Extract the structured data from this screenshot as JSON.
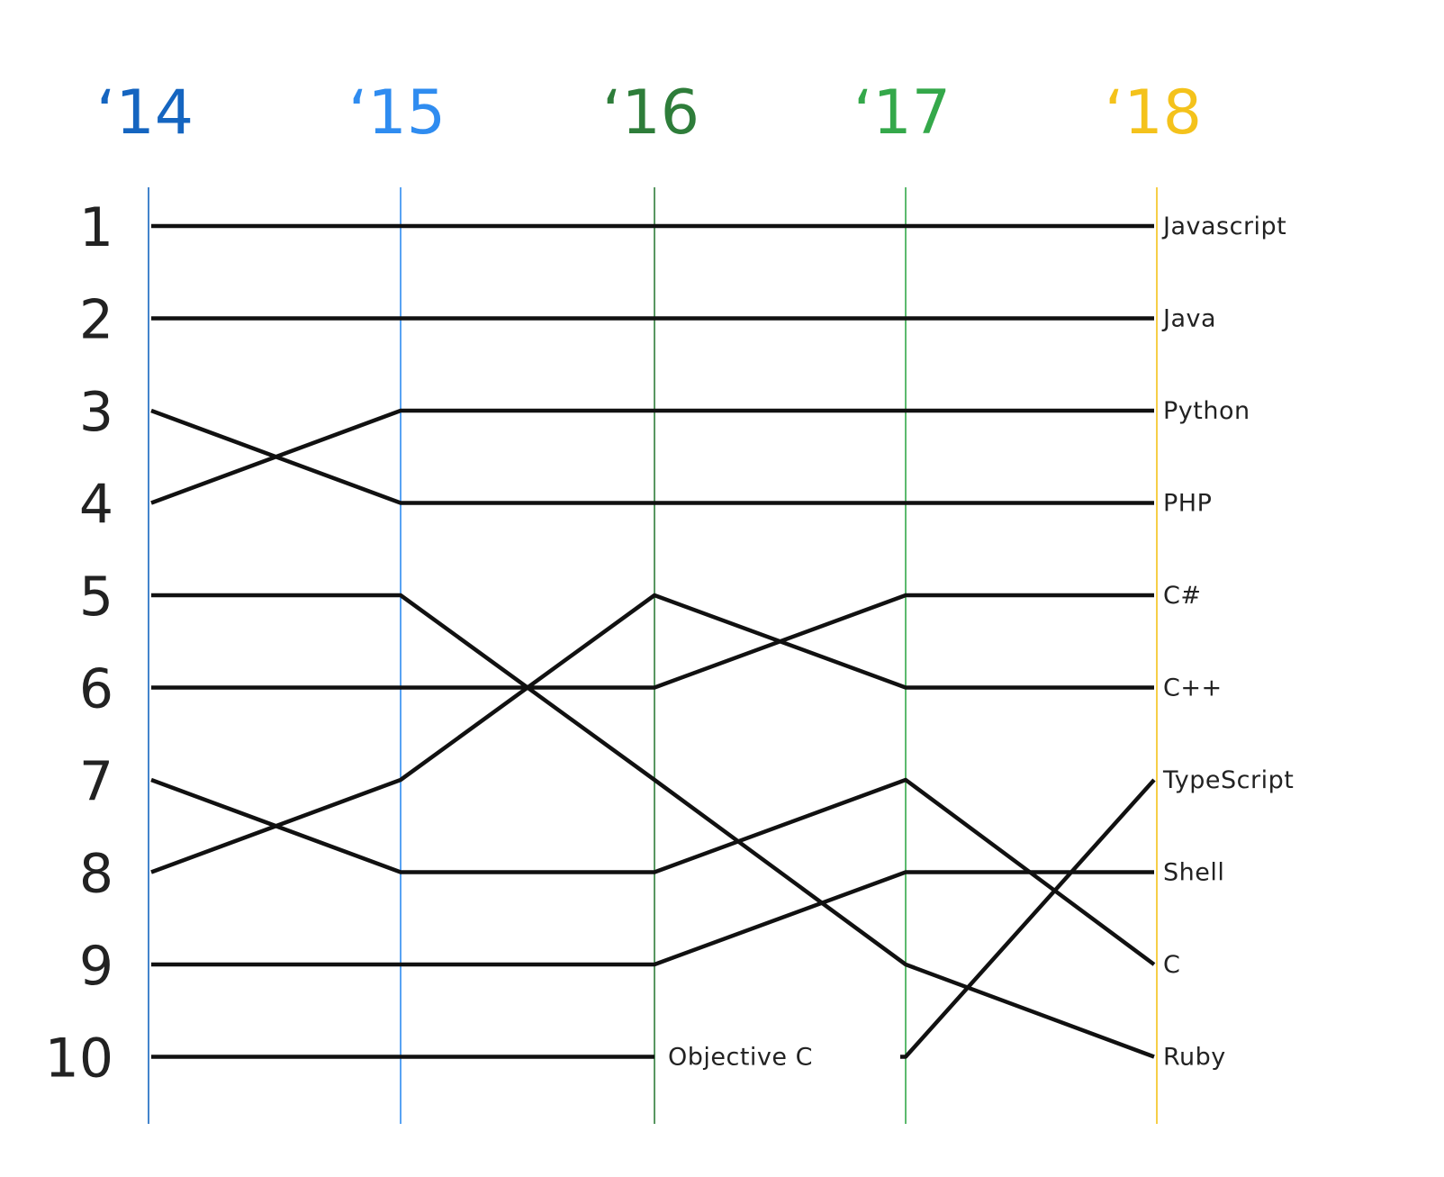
{
  "chart_data": {
    "type": "line",
    "subtype": "bump",
    "title": "",
    "xlabel": "",
    "ylabel": "",
    "x": [
      "‘14",
      "‘15",
      "‘16",
      "‘17",
      "‘18"
    ],
    "x_colors": [
      "#1565C0",
      "#2F8CF0",
      "#2E7D3A",
      "#34A84A",
      "#F4C21B"
    ],
    "ylim": [
      1,
      10
    ],
    "y_inverted": true,
    "y_ticks": [
      "1",
      "2",
      "3",
      "4",
      "5",
      "6",
      "7",
      "8",
      "9",
      "10"
    ],
    "line_color": "#111111",
    "series": [
      {
        "name": "Javascript",
        "values": [
          1,
          1,
          1,
          1,
          1
        ]
      },
      {
        "name": "Java",
        "values": [
          2,
          2,
          2,
          2,
          2
        ]
      },
      {
        "name": "Python",
        "values": [
          4,
          3,
          3,
          3,
          3
        ]
      },
      {
        "name": "PHP",
        "values": [
          3,
          4,
          4,
          4,
          4
        ]
      },
      {
        "name": "C++",
        "values": [
          8,
          7,
          5,
          6,
          6
        ]
      },
      {
        "name": "C#",
        "values": [
          6,
          6,
          6,
          5,
          5
        ]
      },
      {
        "name": "TypeScript",
        "values": [
          null,
          null,
          null,
          10,
          7
        ]
      },
      {
        "name": "Shell",
        "values": [
          9,
          9,
          9,
          8,
          8
        ]
      },
      {
        "name": "C",
        "values": [
          7,
          8,
          8,
          7,
          9
        ]
      },
      {
        "name": "Ruby",
        "values": [
          5,
          5,
          7,
          9,
          10
        ]
      },
      {
        "name": "Objective C",
        "values": [
          10,
          10,
          10,
          null,
          null
        ]
      }
    ]
  }
}
